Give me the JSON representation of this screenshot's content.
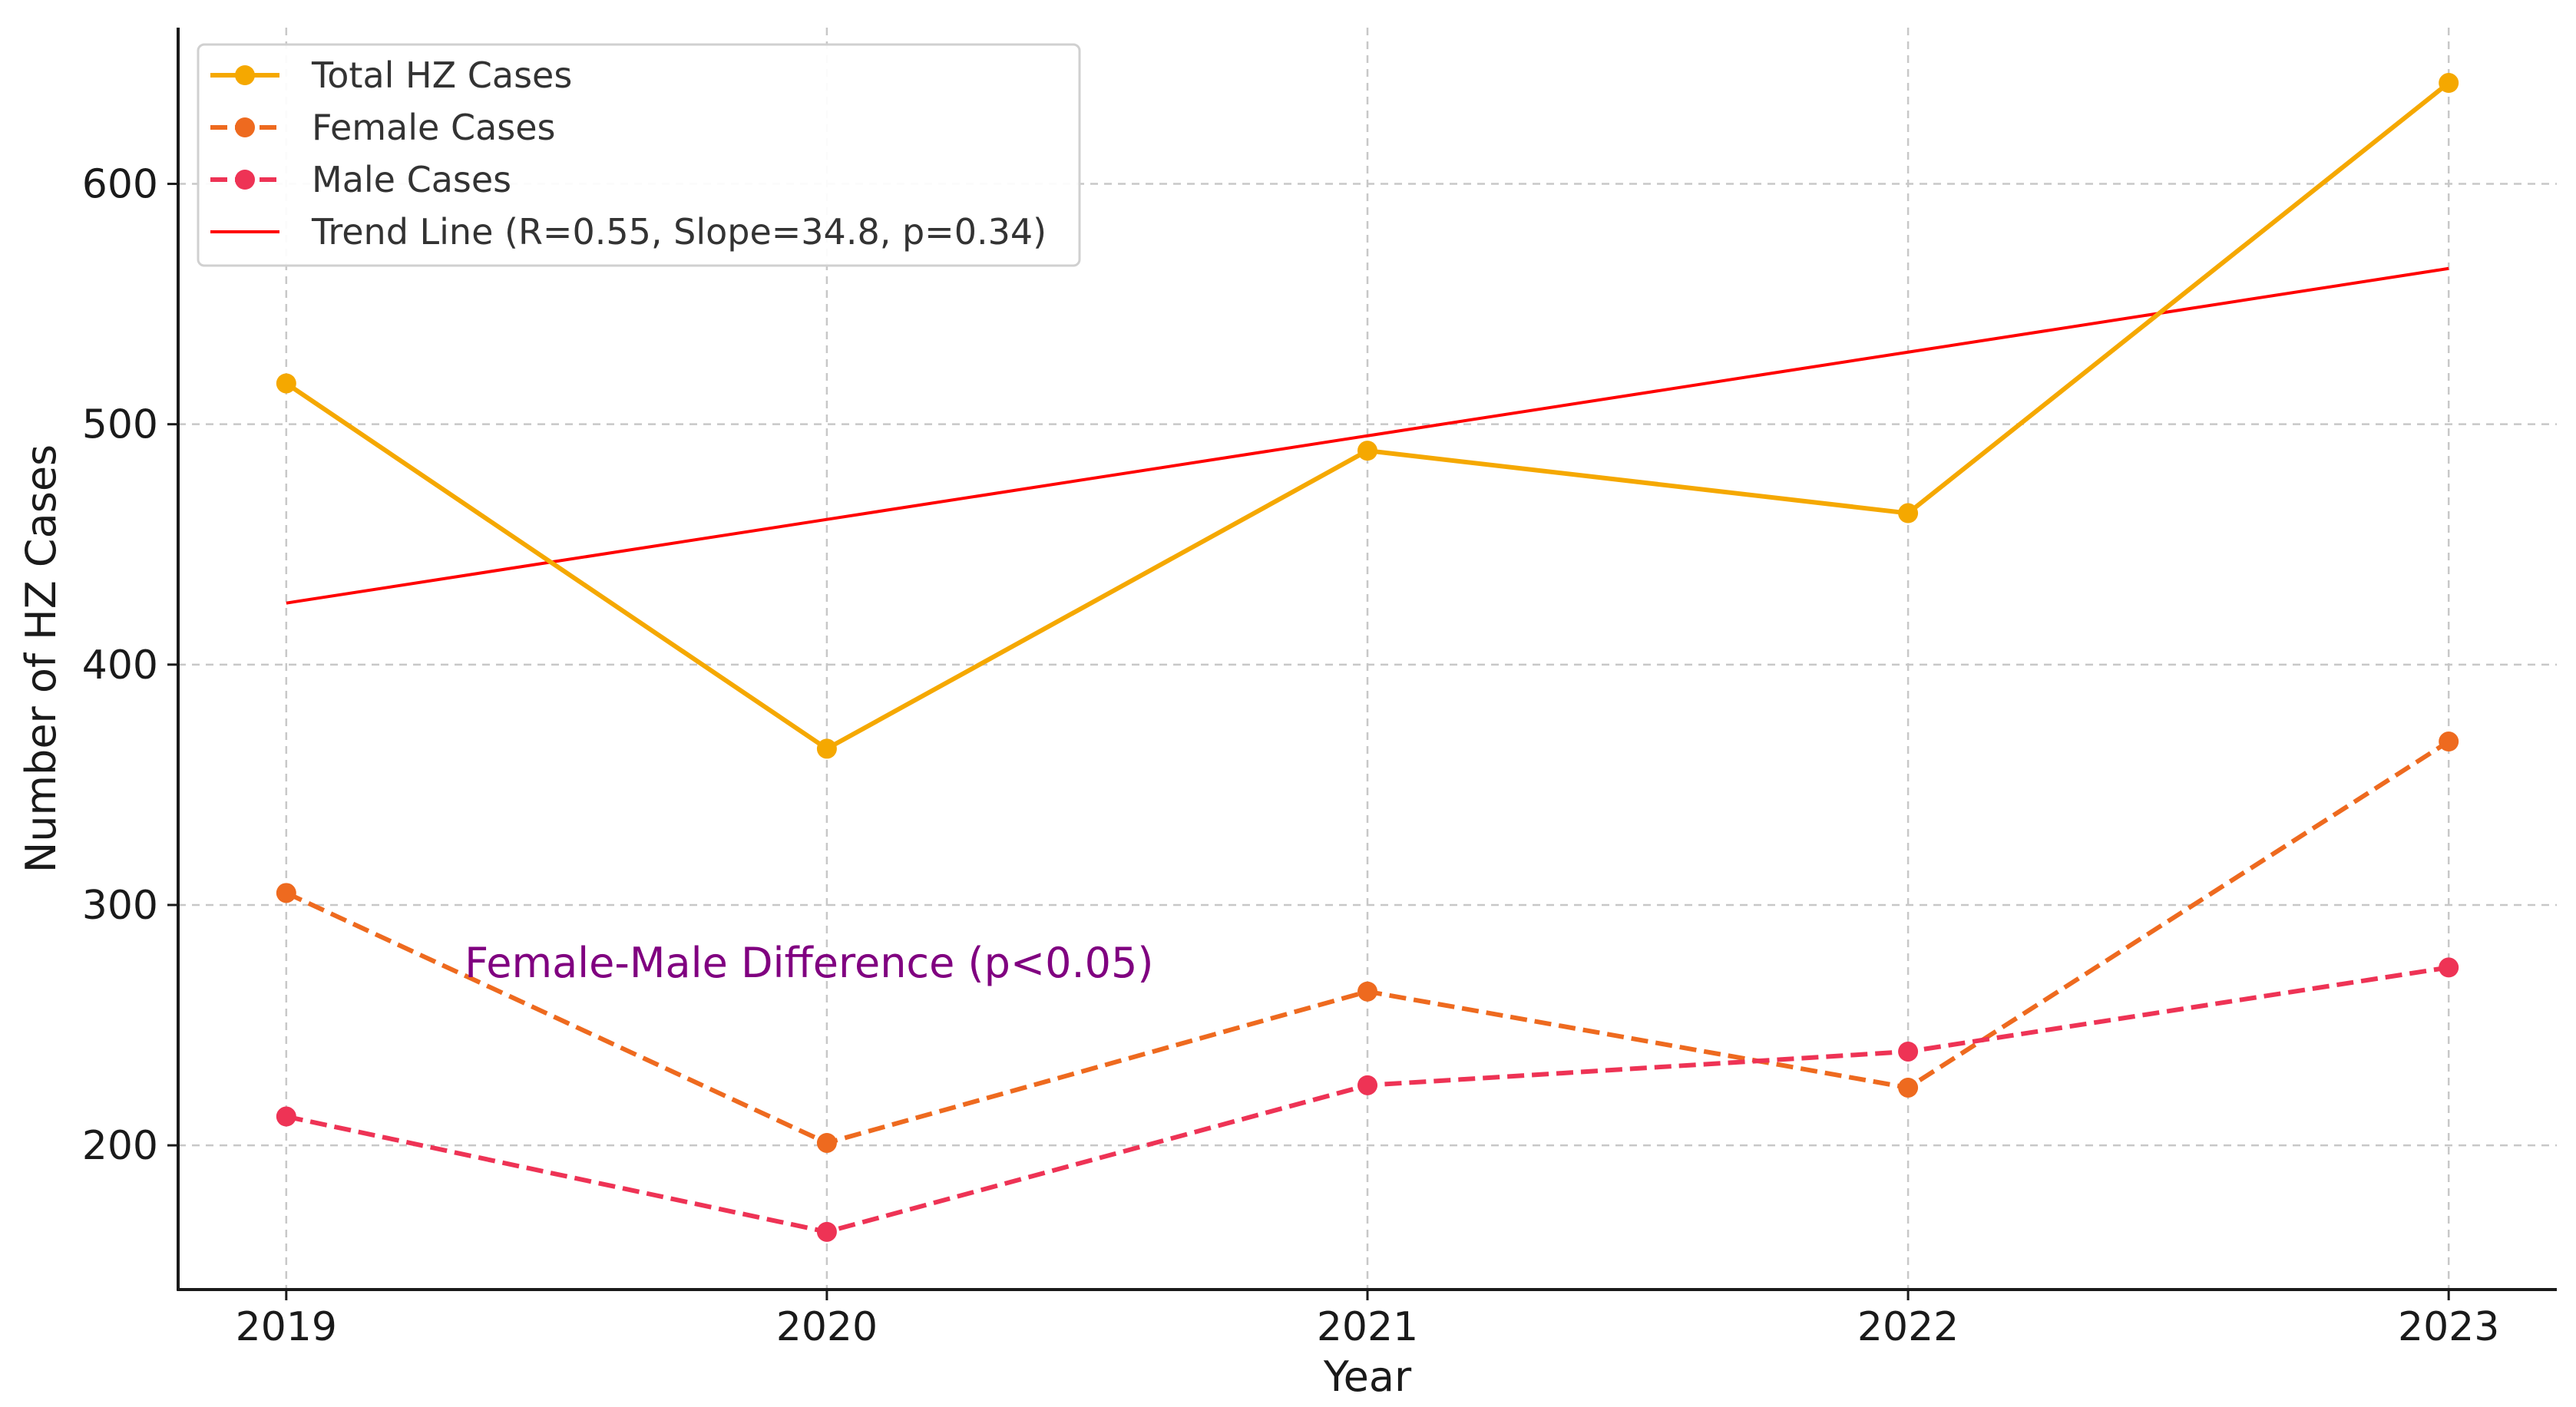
{
  "chart_data": {
    "type": "line",
    "title": "",
    "xlabel": "Year",
    "ylabel": "Number of HZ Cases",
    "categories": [
      "2019",
      "2020",
      "2021",
      "2022",
      "2023"
    ],
    "x": [
      2019,
      2020,
      2021,
      2022,
      2023
    ],
    "xlim": [
      2018.8,
      2023.2
    ],
    "ylim": [
      140,
      665
    ],
    "yticks": [
      200,
      300,
      400,
      500,
      600
    ],
    "grid": true,
    "legend_position": "top-left",
    "series": [
      {
        "name": "Total HZ Cases",
        "values": [
          517,
          365,
          489,
          463,
          642
        ],
        "color": "#F5A800",
        "style": "solid",
        "marker": "circle"
      },
      {
        "name": "Female Cases",
        "values": [
          305,
          201,
          264,
          224,
          368
        ],
        "color": "#EE6A1F",
        "style": "dashed",
        "marker": "circle"
      },
      {
        "name": "Male Cases",
        "values": [
          212,
          164,
          225,
          239,
          274
        ],
        "color": "#EE3355",
        "style": "dashed",
        "marker": "circle"
      },
      {
        "name": "Trend Line (R=0.55, Slope=34.8, p=0.34)",
        "values": [
          425.6,
          460.4,
          495.2,
          530.0,
          564.8
        ],
        "color": "#FF0000",
        "style": "solid",
        "marker": "none"
      }
    ],
    "annotations": [
      {
        "text": "Female-Male Difference (p<0.05)",
        "x": 2019.33,
        "y": 270,
        "color": "#800080"
      }
    ]
  }
}
